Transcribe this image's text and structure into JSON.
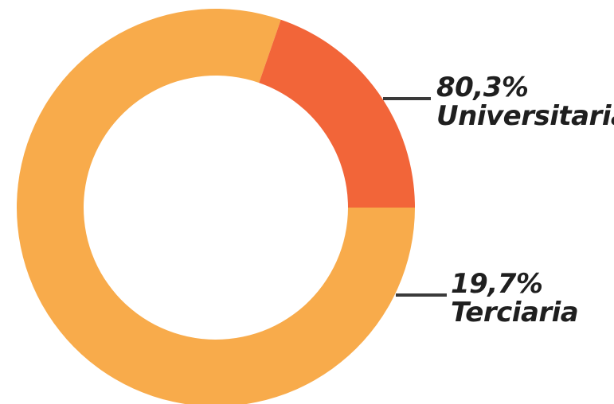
{
  "chart_data": {
    "type": "pie",
    "variant": "donut",
    "title": "",
    "slices": [
      {
        "label": "Universitaria",
        "value": 80.3,
        "value_label": "80,3%",
        "color": "#f8ab4b"
      },
      {
        "label": "Terciaria",
        "value": 19.7,
        "value_label": "19,7%",
        "color": "#f26539"
      }
    ],
    "start_angle_deg": 90,
    "direction": "clockwise",
    "leader_line_color": "#3a3a3a",
    "legend": "none"
  }
}
